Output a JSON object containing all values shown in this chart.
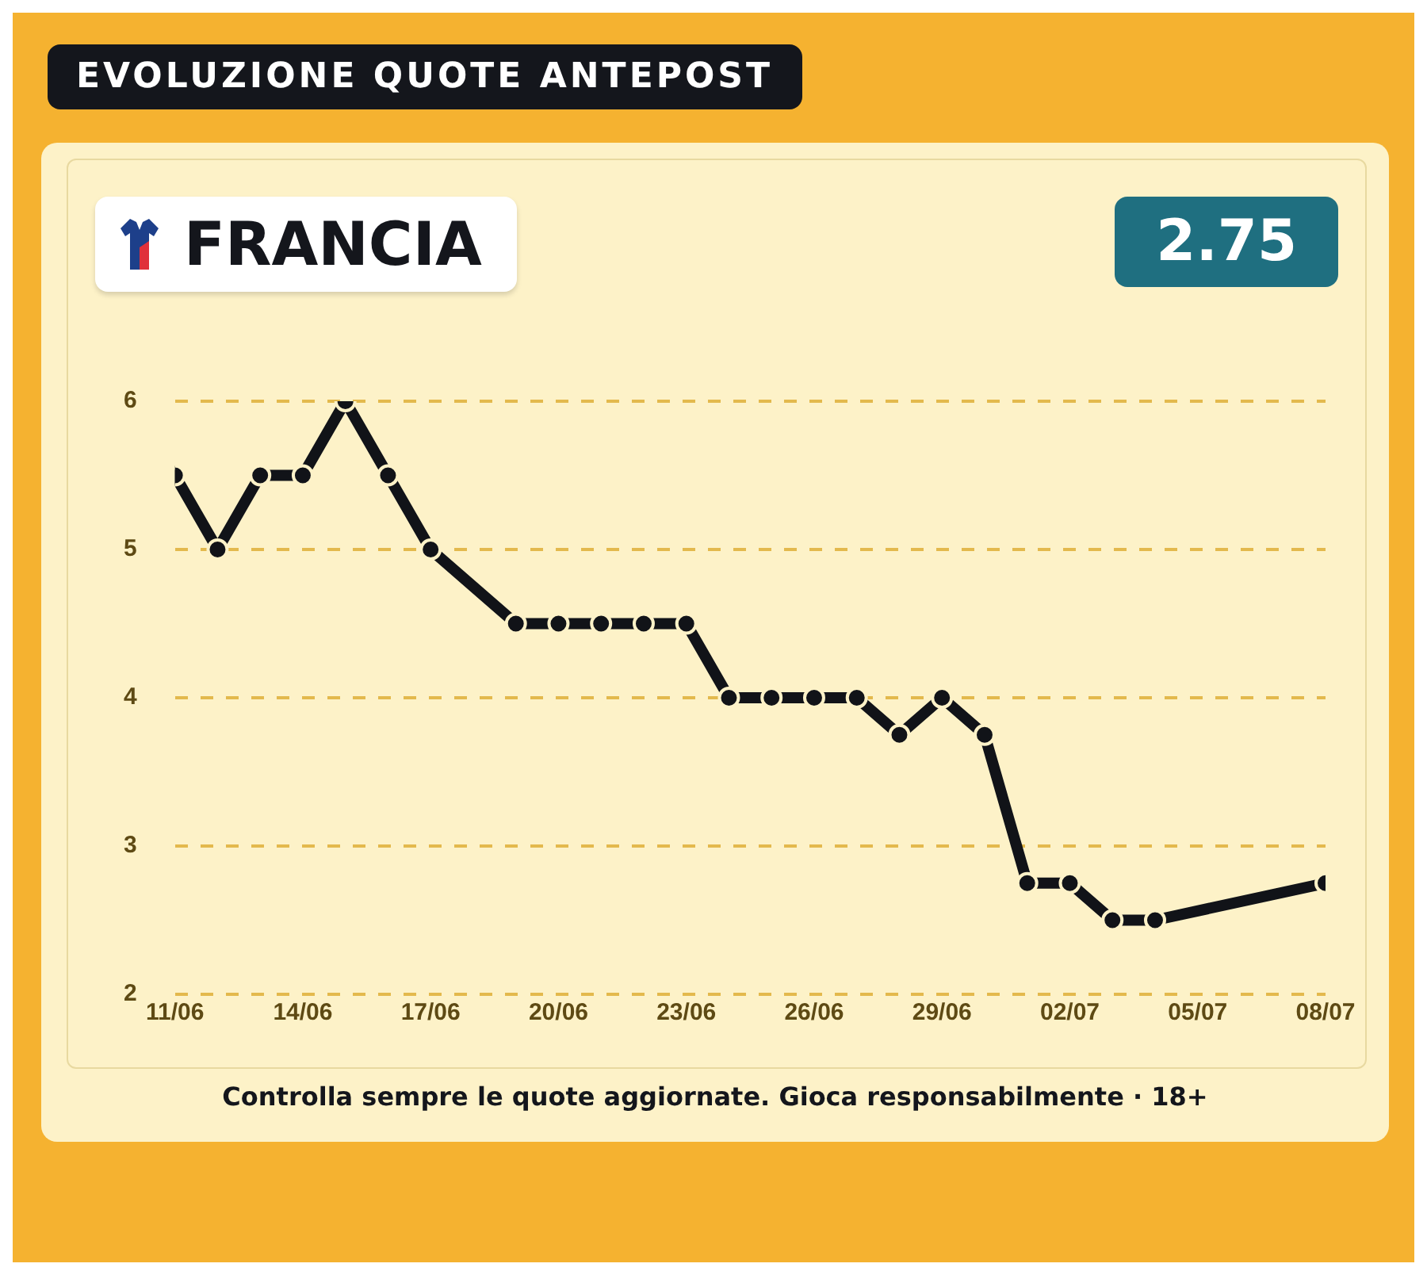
{
  "chart_data": {
    "type": "line",
    "title": "EVOLUZIONE QUOTE ANTEPOST",
    "subtitle": "FRANCIA",
    "annotations": [
      "2.75",
      "Controlla sempre le quote aggiornate. Gioca responsabilmente · 18+"
    ],
    "x": [
      "--06-11",
      "--06-12",
      "--06-13",
      "--06-14",
      "--06-15",
      "--06-16",
      "--06-17",
      "--06-19",
      "--06-20",
      "--06-21",
      "--06-22",
      "--06-23",
      "--06-24",
      "--06-25",
      "--06-26",
      "--06-27",
      "--06-28",
      "--06-29",
      "--06-30",
      "--07-01",
      "--07-02",
      "--07-03",
      "--07-04",
      "--07-08"
    ],
    "series": [
      {
        "color": "#111318",
        "values": [
          5.5,
          5.0,
          5.5,
          5.5,
          6.0,
          5.5,
          5.0,
          4.5,
          4.5,
          4.5,
          4.5,
          4.5,
          4.0,
          4.0,
          4.0,
          4.0,
          3.75,
          4.0,
          3.75,
          2.75,
          2.75,
          2.5,
          2.5,
          2.75
        ]
      }
    ],
    "xlim": [
      "--06-11",
      "--07-08"
    ],
    "xticks": [
      {
        "value": "--06-11",
        "label": "11/06"
      },
      {
        "value": "--06-14",
        "label": "14/06"
      },
      {
        "value": "--06-17",
        "label": "17/06"
      },
      {
        "value": "--06-20",
        "label": "20/06"
      },
      {
        "value": "--06-23",
        "label": "23/06"
      },
      {
        "value": "--06-26",
        "label": "26/06"
      },
      {
        "value": "--06-29",
        "label": "29/06"
      },
      {
        "value": "--07-02",
        "label": "02/07"
      },
      {
        "value": "--07-05",
        "label": "05/07"
      },
      {
        "value": "--07-08",
        "label": "08/07"
      }
    ],
    "ylim": [
      2,
      6
    ],
    "yticks": [
      2,
      3,
      4,
      5,
      6
    ],
    "grid": "y",
    "marker": "circle",
    "line_style": "solid",
    "legend": false
  }
}
